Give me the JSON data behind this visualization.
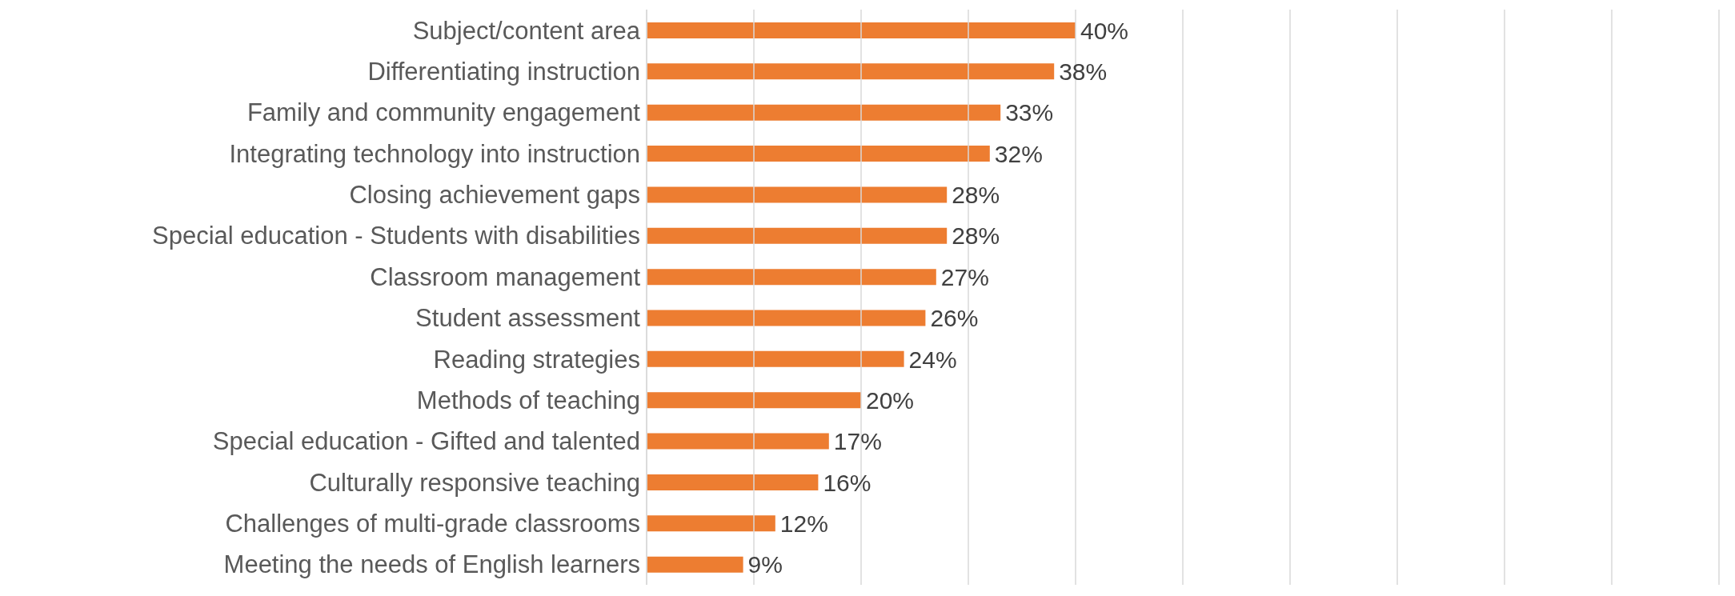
{
  "chart_data": {
    "type": "bar",
    "orientation": "horizontal",
    "categories": [
      "Subject/content area",
      "Differentiating instruction",
      "Family and community engagement",
      "Integrating technology into instruction",
      "Closing achievement gaps",
      "Special education - Students with disabilities",
      "Classroom management",
      "Student assessment",
      "Reading strategies",
      "Methods of teaching",
      "Special education - Gifted and talented",
      "Culturally responsive teaching",
      "Challenges of multi-grade classrooms",
      "Meeting the needs of English learners"
    ],
    "values": [
      40,
      38,
      33,
      32,
      28,
      28,
      27,
      26,
      24,
      20,
      17,
      16,
      12,
      9
    ],
    "value_labels": [
      "40%",
      "38%",
      "33%",
      "32%",
      "28%",
      "28%",
      "27%",
      "26%",
      "24%",
      "20%",
      "17%",
      "16%",
      "12%",
      "9%"
    ],
    "color": "#ed7d31",
    "xlim": [
      0,
      100
    ],
    "xticks": [
      {
        "value": 0,
        "label": null
      },
      {
        "value": 10,
        "label": null
      },
      {
        "value": 20,
        "label": null
      },
      {
        "value": 30,
        "label": null
      },
      {
        "value": 40,
        "label": null
      },
      {
        "value": 50,
        "label": null
      },
      {
        "value": 60,
        "label": null
      },
      {
        "value": 70,
        "label": null
      },
      {
        "value": 80,
        "label": null
      },
      {
        "value": 90,
        "label": null
      },
      {
        "value": 100,
        "label": null
      }
    ],
    "tick_labels": "y",
    "grid": "x",
    "legend": false
  }
}
